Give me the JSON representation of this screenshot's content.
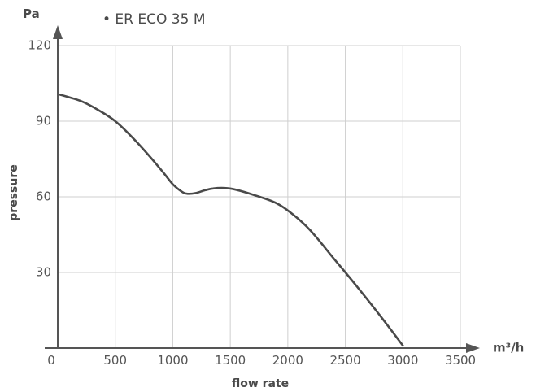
{
  "chart_data": {
    "type": "line",
    "legend": [
      "• ER ECO 35 M"
    ],
    "legend_position": "top",
    "xlabel": "flow rate",
    "ylabel": "pressure",
    "x_unit": "m³/h",
    "y_unit": "Pa",
    "xlim": [
      0,
      3500
    ],
    "ylim": [
      0,
      120
    ],
    "x_ticks": [
      "0",
      "500",
      "1000",
      "1500",
      "2000",
      "2500",
      "3000",
      "3500"
    ],
    "y_ticks": [
      "30",
      "60",
      "90",
      "120"
    ],
    "grid": true,
    "series": [
      {
        "name": "ER ECO 35 M",
        "color": "#4a4a4a",
        "x": [
          20,
          200,
          350,
          500,
          650,
          800,
          920,
          1000,
          1080,
          1130,
          1200,
          1280,
          1350,
          1450,
          1550,
          1700,
          1900,
          2050,
          2200,
          2400,
          2600,
          2800,
          3000
        ],
        "y": [
          100.5,
          98,
          94.5,
          90,
          83.5,
          76,
          69.5,
          65,
          62,
          61.2,
          61.5,
          62.6,
          63.3,
          63.5,
          62.8,
          60.8,
          57.5,
          52.8,
          46.5,
          35.5,
          24.5,
          13,
          1
        ]
      }
    ]
  }
}
